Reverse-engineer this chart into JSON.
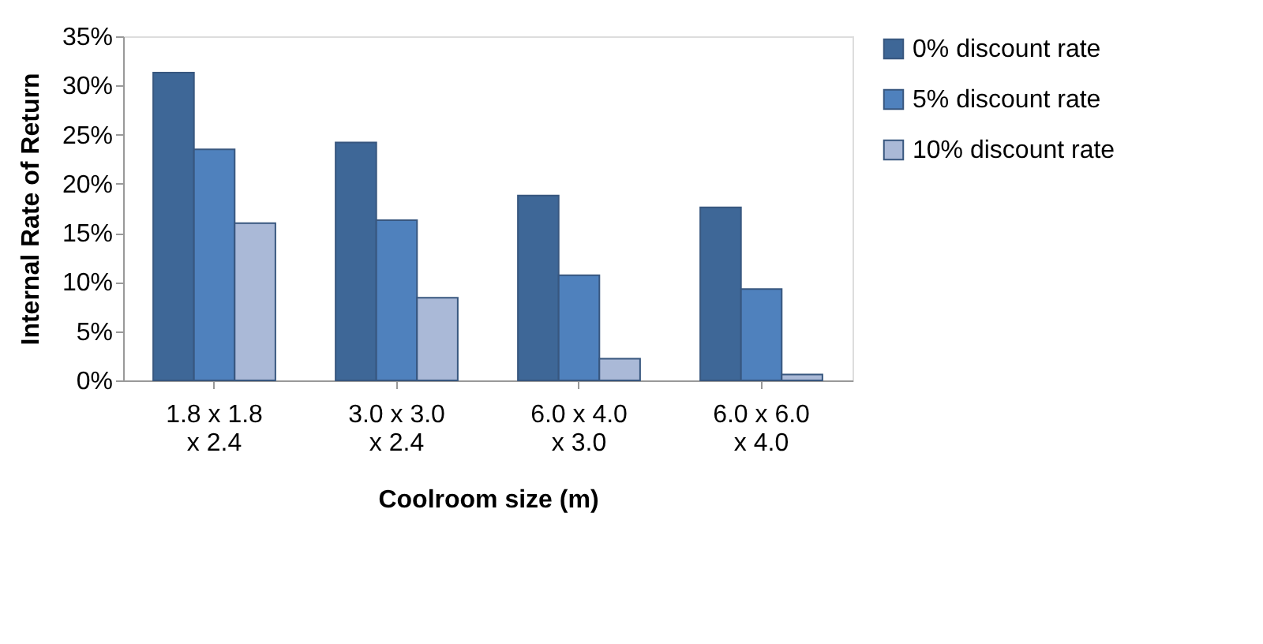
{
  "chart_data": {
    "type": "bar",
    "xlabel": "Coolroom size (m)",
    "ylabel": "Internal Rate of Return",
    "categories": [
      "1.8 x 1.8 x 2.4",
      "3.0 x 3.0 x 2.4",
      "6.0 x 4.0 x 3.0",
      "6.0 x 6.0 x 4.0"
    ],
    "series": [
      {
        "name": "0% discount rate",
        "color": "#3e6797",
        "values": [
          31.3,
          24.2,
          18.8,
          17.6
        ]
      },
      {
        "name": "5% discount rate",
        "color": "#4f81bd",
        "values": [
          23.5,
          16.3,
          10.7,
          9.3
        ]
      },
      {
        "name": "10% discount rate",
        "color": "#aab9d7",
        "values": [
          16.0,
          8.4,
          2.2,
          0.6
        ]
      }
    ],
    "ylim": [
      0,
      35
    ],
    "yticks": [
      {
        "value": 0,
        "label": "0%"
      },
      {
        "value": 5,
        "label": "5%"
      },
      {
        "value": 10,
        "label": "10%"
      },
      {
        "value": 15,
        "label": "15%"
      },
      {
        "value": 20,
        "label": "20%"
      },
      {
        "value": 25,
        "label": "25%"
      },
      {
        "value": 30,
        "label": "30%"
      },
      {
        "value": 35,
        "label": "35%"
      }
    ],
    "grid": false,
    "legend": "right"
  }
}
